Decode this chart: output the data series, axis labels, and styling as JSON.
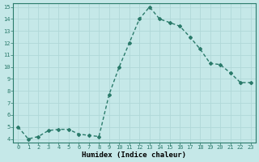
{
  "x": [
    0,
    1,
    2,
    3,
    4,
    5,
    6,
    7,
    8,
    9,
    10,
    11,
    12,
    13,
    14,
    15,
    16,
    17,
    18,
    19,
    20,
    21,
    22,
    23
  ],
  "y": [
    5.0,
    4.0,
    4.2,
    4.7,
    4.8,
    4.8,
    4.4,
    4.3,
    4.2,
    7.7,
    10.0,
    12.0,
    14.0,
    15.0,
    14.0,
    13.7,
    13.4,
    12.5,
    11.5,
    10.3,
    10.2,
    9.5,
    8.7,
    8.7
  ],
  "xlabel": "Humidex (Indice chaleur)",
  "ylim_min": 3.7,
  "ylim_max": 15.3,
  "xlim_min": -0.5,
  "xlim_max": 23.5,
  "yticks": [
    4,
    5,
    6,
    7,
    8,
    9,
    10,
    11,
    12,
    13,
    14,
    15
  ],
  "xticks": [
    0,
    1,
    2,
    3,
    4,
    5,
    6,
    7,
    8,
    9,
    10,
    11,
    12,
    13,
    14,
    15,
    16,
    17,
    18,
    19,
    20,
    21,
    22,
    23
  ],
  "line_color": "#2a7a6a",
  "marker": "D",
  "marker_size": 2.0,
  "line_width": 1.0,
  "bg_color": "#c5e8e8",
  "grid_color": "#b0d8d8",
  "tick_label_fontsize": 5.0,
  "xlabel_fontsize": 6.5,
  "xlabel_fontweight": "bold"
}
